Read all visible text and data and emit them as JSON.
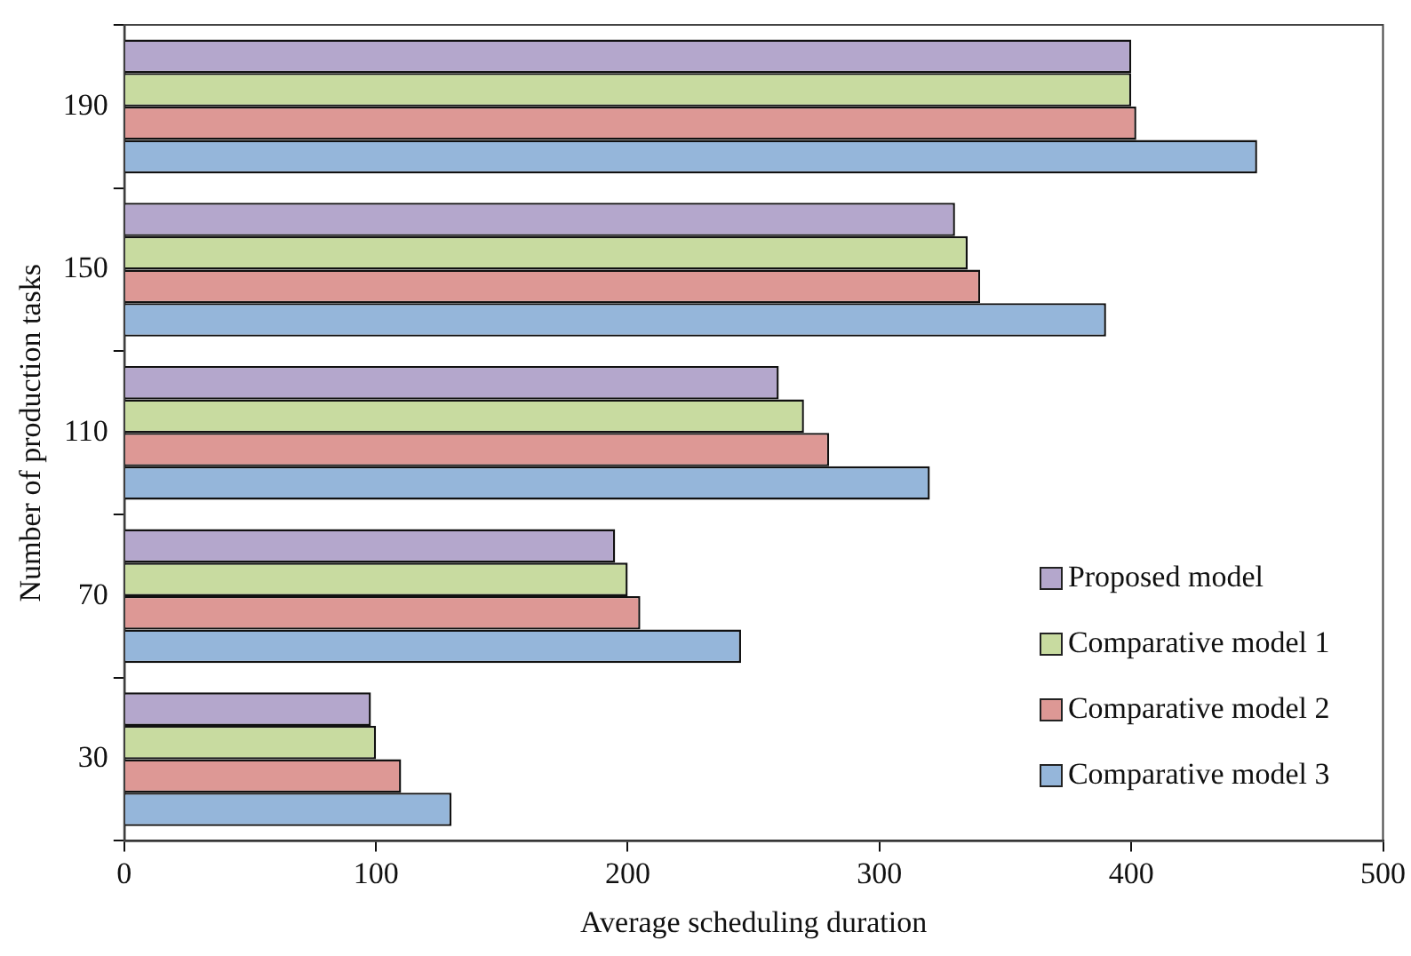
{
  "chart_data": {
    "type": "bar",
    "orientation": "horizontal",
    "xlabel": "Average scheduling duration",
    "ylabel": "Number of production tasks",
    "categories": [
      "190",
      "150",
      "110",
      "70",
      "30"
    ],
    "series": [
      {
        "name": "Proposed model",
        "color": "#b4a7cc",
        "values": [
          400,
          330,
          260,
          195,
          98
        ]
      },
      {
        "name": "Comparative model 1",
        "color": "#c8dba0",
        "values": [
          400,
          335,
          270,
          200,
          100
        ]
      },
      {
        "name": "Comparative model 2",
        "color": "#dd9895",
        "values": [
          402,
          340,
          280,
          205,
          110
        ]
      },
      {
        "name": "Comparative model 3",
        "color": "#95b6da",
        "values": [
          450,
          390,
          320,
          245,
          130
        ]
      }
    ],
    "xlim": [
      0,
      500
    ],
    "xticks": [
      0,
      100,
      200,
      300,
      400,
      500
    ],
    "grid": false,
    "legend": "bottom right"
  }
}
